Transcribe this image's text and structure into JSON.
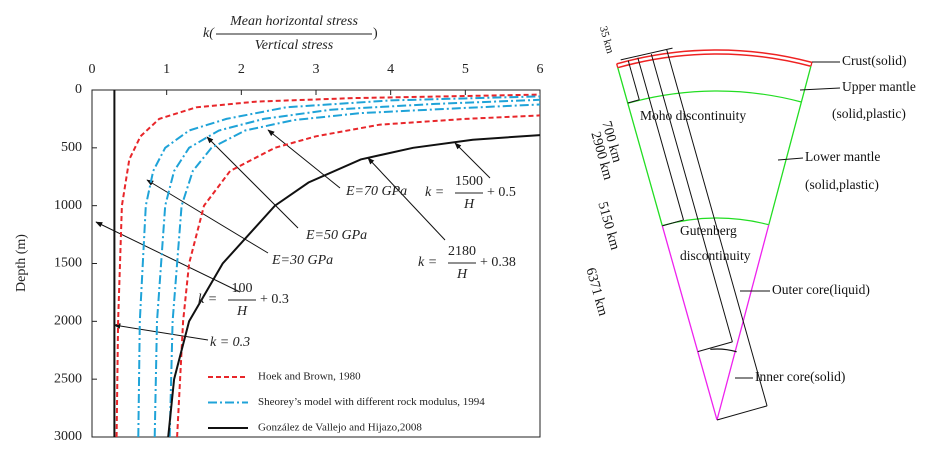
{
  "chart_data": {
    "type": "line",
    "x_label": {
      "prefix": "k(",
      "numerator": "Mean horizontal stress",
      "denominator": "Vertical stress",
      "suffix": ")"
    },
    "y_label": "Depth (m)",
    "xlim": [
      0,
      6
    ],
    "xticks": [
      0,
      1,
      2,
      3,
      4,
      5,
      6
    ],
    "ylim": [
      0,
      3000
    ],
    "yticks": [
      0,
      500,
      1000,
      1500,
      2000,
      2500,
      3000
    ],
    "y_inverted": true,
    "legend": "bottom",
    "series": [
      {
        "name": "Hoek and Brown, 1980",
        "color": "#e8262a",
        "dash": "5,3",
        "curves": [
          {
            "depth": [
              3000,
              2000,
              1000,
              600,
              400,
              250,
              150,
              100,
              70,
              40
            ],
            "values": [
              0.33,
              0.35,
              0.4,
              0.5,
              0.65,
              0.9,
              1.4,
              2.2,
              3.5,
              6
            ]
          },
          {
            "depth": [
              3000,
              2000,
              1500,
              1000,
              700,
              500,
              400,
              300,
              250,
              220
            ],
            "values": [
              1.14,
              1.22,
              1.3,
              1.5,
              1.85,
              2.45,
              3.0,
              3.85,
              5.0,
              6
            ]
          }
        ]
      },
      {
        "name": "Sheorey’s model with different rock modulus, 1994",
        "color": "#1fa3d8",
        "dash": "9,3,2,3",
        "curves": [
          {
            "depth": [
              3000,
              2000,
              1000,
              700,
              500,
              350,
              250,
              150,
              90,
              55
            ],
            "values": [
              0.62,
              0.64,
              0.72,
              0.82,
              0.98,
              1.3,
              1.8,
              2.6,
              4.0,
              6
            ]
          },
          {
            "depth": [
              3000,
              2000,
              1000,
              700,
              500,
              350,
              250,
              170,
              120,
              85
            ],
            "values": [
              0.84,
              0.87,
              0.98,
              1.1,
              1.3,
              1.7,
              2.3,
              3.2,
              4.6,
              6
            ]
          },
          {
            "depth": [
              3000,
              2000,
              1000,
              700,
              500,
              350,
              260,
              200,
              155,
              125
            ],
            "values": [
              1.04,
              1.08,
              1.2,
              1.35,
              1.6,
              2.05,
              2.7,
              3.6,
              5.0,
              6
            ]
          }
        ]
      },
      {
        "name": "González de Vallejo and Hijazo,2008",
        "color": "#111111",
        "dash": "",
        "curves": [
          {
            "depth": [
              0,
              3000
            ],
            "values": [
              0.3,
              0.3
            ]
          },
          {
            "depth": [
              3000,
              2500,
              2000,
              1500,
              1000,
              800,
              600,
              500,
              430,
              390
            ],
            "values": [
              1.02,
              1.1,
              1.3,
              1.75,
              2.45,
              2.9,
              3.6,
              4.3,
              5.1,
              6
            ]
          }
        ]
      }
    ],
    "annotations": [
      "E=70 GPa",
      "E=50 GPa",
      "E=30 GPa",
      "k = 0.3"
    ],
    "formulas": [
      {
        "lhs": "k =",
        "numerator": "1500",
        "denominator": "H",
        "rhs": "+ 0.5"
      },
      {
        "lhs": "k =",
        "numerator": "2180",
        "denominator": "H",
        "rhs": "+ 0.38"
      },
      {
        "lhs": "k =",
        "numerator": "100",
        "denominator": "H",
        "rhs": "+ 0.3"
      }
    ]
  },
  "diagram": {
    "dimension_labels": [
      "35 km",
      "700 km",
      "2900 km",
      "5150 km",
      "6371 km"
    ],
    "region_labels": [
      "Crust(solid)",
      "Upper mantle",
      "(solid,plastic)",
      "Moho discontinuity",
      "Lower mantle",
      "(solid,plastic)",
      "Gutenberg",
      "discontinuity",
      "Outer core(liquid)",
      "Inner core(solid)"
    ]
  }
}
